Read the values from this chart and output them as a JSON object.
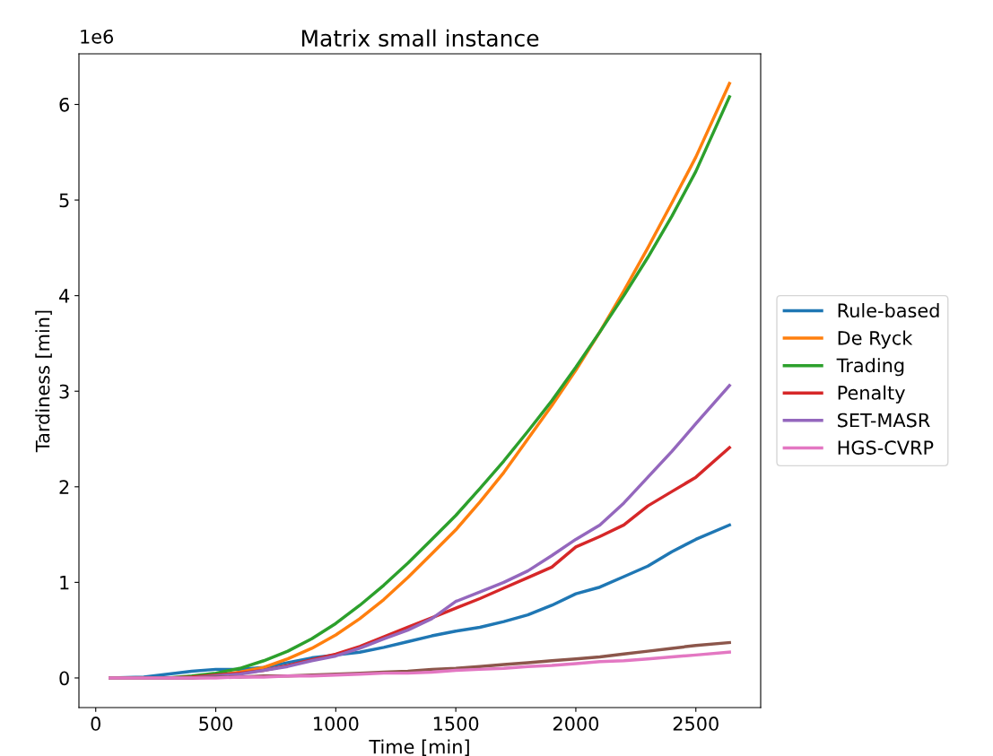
{
  "chart_data": {
    "type": "line",
    "title": "Matrix small instance",
    "xlabel": "Time [min]",
    "ylabel": "Tardiness [min]",
    "x": [
      60,
      200,
      300,
      400,
      500,
      600,
      700,
      800,
      900,
      1000,
      1100,
      1200,
      1300,
      1400,
      1500,
      1600,
      1700,
      1800,
      1900,
      2000,
      2100,
      2200,
      2300,
      2400,
      2500,
      2640
    ],
    "series": [
      {
        "name": "Rule-based",
        "color": "#1f77b4",
        "values": [
          0,
          0.01,
          0.04,
          0.07,
          0.09,
          0.09,
          0.11,
          0.16,
          0.21,
          0.24,
          0.27,
          0.32,
          0.38,
          0.44,
          0.49,
          0.53,
          0.59,
          0.66,
          0.76,
          0.88,
          0.95,
          1.06,
          1.17,
          1.32,
          1.45,
          1.6
        ]
      },
      {
        "name": "De Ryck",
        "color": "#ff7f0e",
        "values": [
          null,
          null,
          null,
          null,
          0.03,
          0.06,
          0.11,
          0.2,
          0.31,
          0.45,
          0.62,
          0.82,
          1.05,
          1.3,
          1.55,
          1.84,
          2.15,
          2.5,
          2.85,
          3.22,
          3.62,
          4.05,
          4.5,
          4.97,
          5.45,
          6.22
        ]
      },
      {
        "name": "Trading",
        "color": "#2ca02c",
        "values": [
          0,
          0,
          0,
          0.02,
          0.05,
          0.1,
          0.18,
          0.28,
          0.41,
          0.57,
          0.76,
          0.97,
          1.2,
          1.45,
          1.7,
          1.98,
          2.27,
          2.58,
          2.9,
          3.25,
          3.62,
          4.0,
          4.4,
          4.83,
          5.3,
          6.08
        ]
      },
      {
        "name": "Penalty",
        "color": "#d62728",
        "values": [
          null,
          null,
          0,
          0.01,
          0.03,
          0.05,
          0.08,
          0.13,
          0.19,
          0.25,
          0.33,
          0.43,
          0.53,
          0.63,
          0.73,
          0.83,
          0.94,
          1.05,
          1.16,
          1.37,
          1.48,
          1.6,
          1.8,
          1.95,
          2.1,
          2.41
        ]
      },
      {
        "name": "SET-MASR",
        "color": "#9467bd",
        "values": [
          null,
          null,
          0,
          0,
          0.02,
          0.04,
          0.08,
          0.12,
          0.18,
          0.23,
          0.31,
          0.41,
          0.5,
          0.62,
          0.8,
          0.9,
          1.0,
          1.12,
          1.28,
          1.45,
          1.6,
          1.83,
          2.1,
          2.37,
          2.66,
          3.06
        ]
      },
      {
        "color": "#8c564b",
        "values": [
          0,
          0,
          0,
          0,
          0.01,
          0.01,
          0.02,
          0.02,
          0.03,
          0.04,
          0.05,
          0.06,
          0.07,
          0.09,
          0.1,
          0.12,
          0.14,
          0.16,
          0.18,
          0.2,
          0.22,
          0.25,
          0.28,
          0.31,
          0.34,
          0.37
        ]
      },
      {
        "name": "HGS-CVRP",
        "color": "#e377c2",
        "values": [
          0,
          0,
          0,
          0,
          0,
          0.01,
          0.01,
          0.02,
          0.02,
          0.03,
          0.04,
          0.05,
          0.05,
          0.06,
          0.08,
          0.09,
          0.1,
          0.12,
          0.13,
          0.15,
          0.17,
          0.18,
          0.2,
          0.22,
          0.24,
          0.27
        ]
      }
    ],
    "xlim": [
      -70,
      2770
    ],
    "xticks": [
      0,
      500,
      1000,
      1500,
      2000,
      2500
    ],
    "ylim": [
      -0.31,
      6.53
    ],
    "yticks": [
      0,
      1,
      2,
      3,
      4,
      5,
      6
    ],
    "annotations": [
      "1e6"
    ],
    "legend": "right",
    "grid": false
  }
}
